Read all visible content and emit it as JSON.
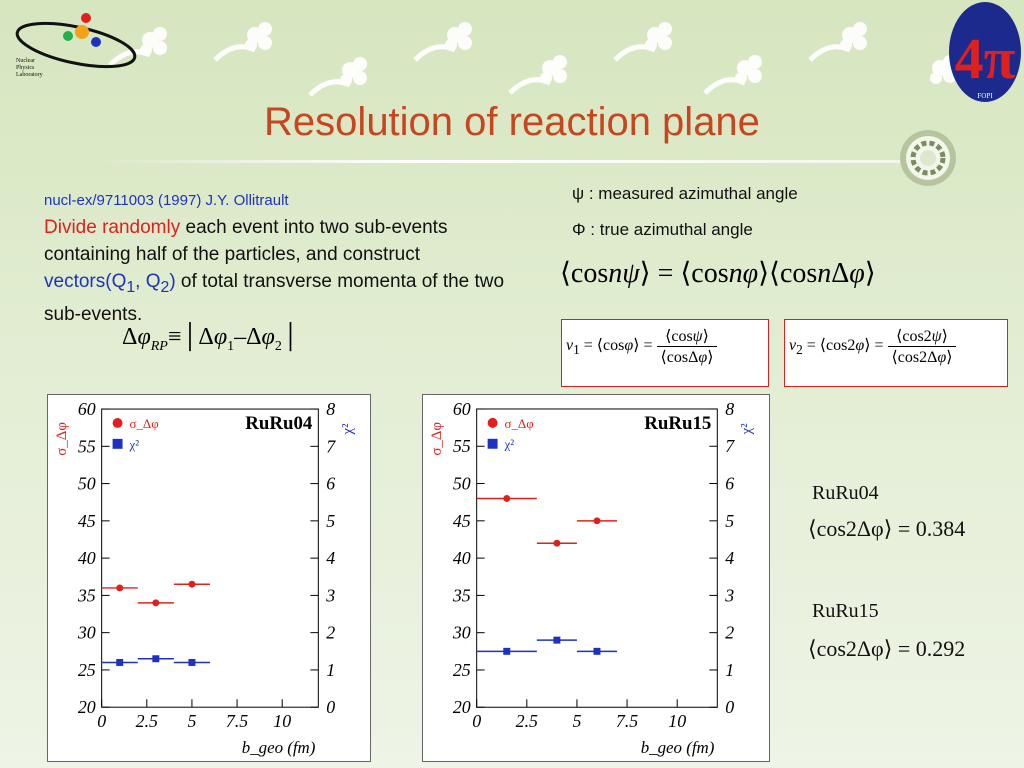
{
  "slide": {
    "title": "Resolution of reaction plane",
    "reference": "nucl-ex/9711003 (1997) J.Y. Ollitrault",
    "paragraph": {
      "emph": "Divide randomly",
      "part1": " each event into two sub-events containing half of the particles, and construct ",
      "vectors_label": "vectors(Q",
      "q1": "1",
      "comma": ", Q",
      "q2": "2",
      "close": ")",
      "part2": " of total transverse momenta of the two sub-events."
    },
    "definitions": {
      "psi": "ψ : measured azimuthal angle",
      "phi": "Φ : true azimuthal angle"
    },
    "equations": {
      "delta_rp": "Δφ_RP ≡ |Δφ1 − Δφ2|",
      "main": "⟨cos nψ⟩ = ⟨cos nφ⟩⟨cos nΔφ⟩",
      "v1": "v1 = ⟨cos φ⟩ = ⟨cos ψ⟩ / ⟨cos Δφ⟩",
      "v2": "v2 = ⟨cos 2φ⟩ = ⟨cos 2ψ⟩ / ⟨cos 2Δφ⟩"
    },
    "results": [
      {
        "label": "RuRu04",
        "equation": "⟨cos2Δφ⟩ = 0.384"
      },
      {
        "label": "RuRu15",
        "equation": "⟨cos2Δφ⟩ = 0.292"
      }
    ],
    "logo": {
      "text": "4π",
      "caption": "FOPI",
      "lab": "Nuclear Physics Laboratory"
    },
    "colors": {
      "title": "#c8461f",
      "emphasis": "#e0201c",
      "link": "#1d32c2",
      "sigma": "#e0201c",
      "chi": "#1d32c2"
    }
  },
  "chart_data": [
    {
      "type": "scatter",
      "title": "RuRu04",
      "xlabel": "b_geo (fm)",
      "ylabel_left": "σ_Δφ",
      "ylabel_right": "χ²",
      "xlim": [
        0,
        12
      ],
      "ylim_left": [
        20,
        60
      ],
      "ylim_right": [
        0,
        8
      ],
      "x_ticks": [
        "0",
        "2.5",
        "5",
        "7.5",
        "10"
      ],
      "y_left_ticks": [
        "20",
        "25",
        "30",
        "35",
        "40",
        "45",
        "50",
        "55",
        "60"
      ],
      "y_right_ticks": [
        "0",
        "1",
        "2",
        "3",
        "4",
        "5",
        "6",
        "7",
        "8"
      ],
      "legend": [
        "σ_Δφ",
        "χ²"
      ],
      "series": [
        {
          "name": "σ_Δφ",
          "axis": "left",
          "marker": "circle",
          "x": [
            1.0,
            3.0,
            5.0
          ],
          "y": [
            36.0,
            34.0,
            36.5
          ],
          "xerr": [
            1.0,
            1.0,
            1.0
          ]
        },
        {
          "name": "χ²",
          "axis": "right",
          "marker": "square",
          "x": [
            1.0,
            3.0,
            5.0
          ],
          "y": [
            1.2,
            1.3,
            1.2
          ],
          "xerr": [
            1.0,
            1.0,
            1.0
          ]
        }
      ]
    },
    {
      "type": "scatter",
      "title": "RuRu15",
      "xlabel": "b_geo (fm)",
      "ylabel_left": "σ_Δφ",
      "ylabel_right": "χ²",
      "xlim": [
        0,
        12
      ],
      "ylim_left": [
        20,
        60
      ],
      "ylim_right": [
        0,
        8
      ],
      "x_ticks": [
        "0",
        "2.5",
        "5",
        "7.5",
        "10"
      ],
      "y_left_ticks": [
        "20",
        "25",
        "30",
        "35",
        "40",
        "45",
        "50",
        "55",
        "60"
      ],
      "y_right_ticks": [
        "0",
        "1",
        "2",
        "3",
        "4",
        "5",
        "6",
        "7",
        "8"
      ],
      "legend": [
        "σ_Δφ",
        "χ²"
      ],
      "series": [
        {
          "name": "σ_Δφ",
          "axis": "left",
          "marker": "circle",
          "x": [
            1.5,
            4.0,
            6.0
          ],
          "y": [
            48.0,
            42.0,
            45.0
          ],
          "xerr": [
            1.5,
            1.0,
            1.0
          ]
        },
        {
          "name": "χ²",
          "axis": "right",
          "marker": "square",
          "x": [
            1.5,
            4.0,
            6.0
          ],
          "y": [
            1.5,
            1.8,
            1.5
          ],
          "xerr": [
            1.5,
            1.0,
            1.0
          ]
        }
      ]
    }
  ]
}
